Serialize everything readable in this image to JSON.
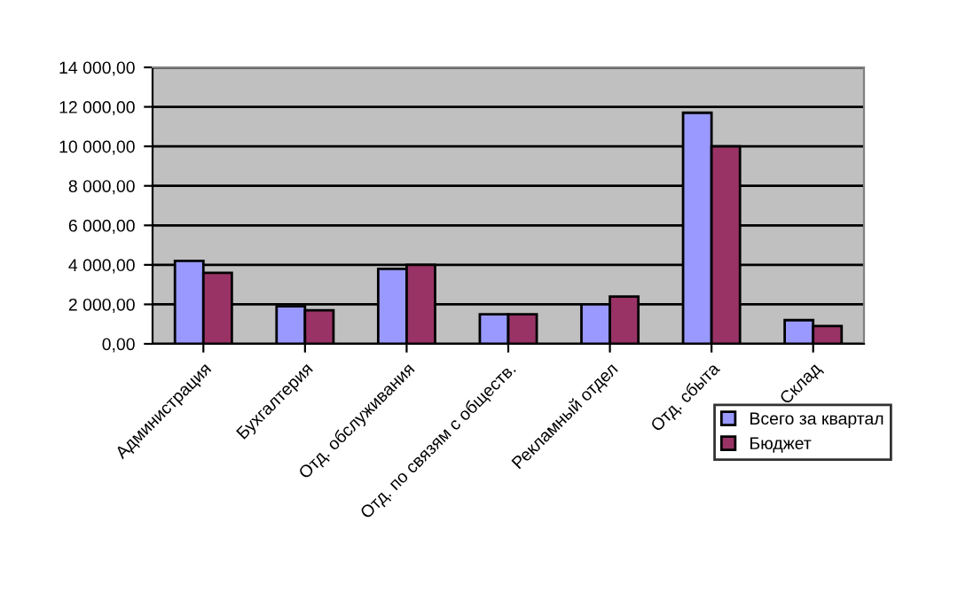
{
  "chart_data": {
    "type": "bar",
    "categories": [
      "Администрация",
      "Бухгалтерия",
      "Отд. обслуживания",
      "Отд. по связям с обществ.",
      "Рекламный отдел",
      "Отд. сбыта",
      "Склад"
    ],
    "series": [
      {
        "name": "Всего за квартал",
        "color": "#9999ff",
        "values": [
          4200,
          1900,
          3800,
          1500,
          2000,
          11700,
          1200
        ]
      },
      {
        "name": "Бюджет",
        "color": "#993366",
        "values": [
          3600,
          1700,
          4000,
          1500,
          2400,
          10000,
          900
        ]
      }
    ],
    "ylim": [
      0,
      14000
    ],
    "yticks": [
      {
        "value": 0,
        "label": "0,00"
      },
      {
        "value": 2000,
        "label": "2 000,00"
      },
      {
        "value": 4000,
        "label": "4 000,00"
      },
      {
        "value": 6000,
        "label": "6 000,00"
      },
      {
        "value": 8000,
        "label": "8 000,00"
      },
      {
        "value": 10000,
        "label": "10 000,00"
      },
      {
        "value": 12000,
        "label": "12 000,00"
      },
      {
        "value": 14000,
        "label": "14 000,00"
      }
    ],
    "grid": "y",
    "legend": "bottom right"
  }
}
